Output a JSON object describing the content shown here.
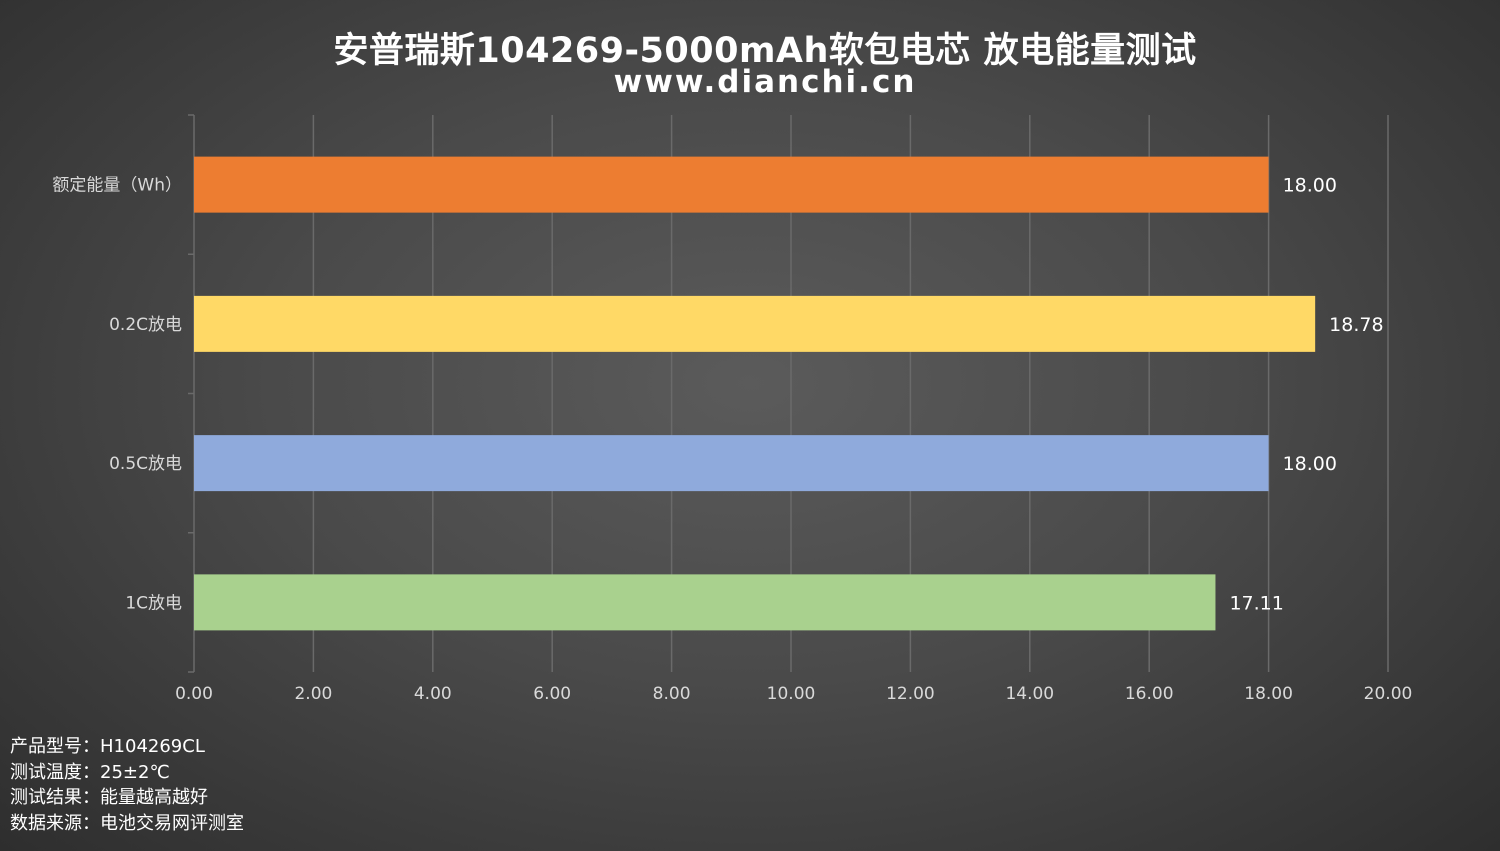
{
  "chart_data": {
    "type": "bar",
    "orientation": "horizontal",
    "title": "安普瑞斯104269-5000mAh软包电芯 放电能量测试",
    "subtitle": "www.dianchi.cn",
    "categories": [
      "额定能量（Wh）",
      "0.2C放电",
      "0.5C放电",
      "1C放电"
    ],
    "values": [
      18.0,
      18.78,
      18.0,
      17.11
    ],
    "value_labels": [
      "18.00",
      "18.78",
      "18.00",
      "17.11"
    ],
    "bar_colors": [
      "#ed7d31",
      "#ffd966",
      "#8faadc",
      "#a9d18e"
    ],
    "xlim": [
      0,
      20
    ],
    "x_ticks": [
      "0.00",
      "2.00",
      "4.00",
      "6.00",
      "8.00",
      "10.00",
      "12.00",
      "14.00",
      "16.00",
      "18.00",
      "20.00"
    ],
    "grid": true,
    "legend": "none"
  },
  "notes": [
    "产品型号：H104269CL",
    "测试温度：25±2℃",
    "测试结果：能量越高越好",
    "数据来源：电池交易网评测室"
  ],
  "colors": {
    "text": "#ffffff",
    "axis_text": "#d9d9d9",
    "grid": "#6a6a6a"
  }
}
